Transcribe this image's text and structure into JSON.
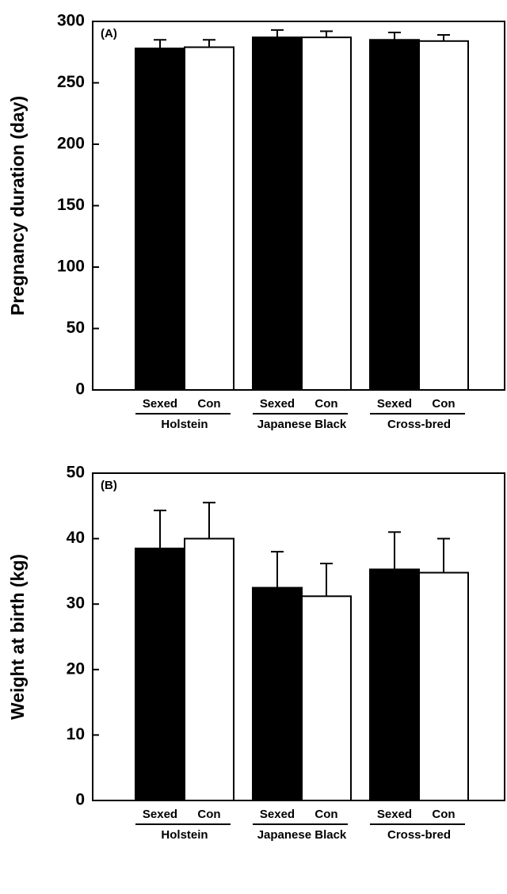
{
  "chart_data": [
    {
      "type": "bar",
      "annotation": "(A)",
      "ylabel": "Pregnancy duration (day)",
      "categories": [
        "Holstein",
        "Japanese Black",
        "Cross-bred"
      ],
      "series": [
        {
          "name": "Sexed",
          "color": "#000000",
          "values": [
            278,
            287,
            285
          ],
          "errors": [
            7,
            6,
            6
          ]
        },
        {
          "name": "Con",
          "color": "#ffffff",
          "values": [
            279,
            287,
            284
          ],
          "errors": [
            6,
            5,
            5
          ]
        }
      ],
      "ylim": [
        0,
        300
      ],
      "yticks": [
        0,
        50,
        100,
        150,
        200,
        250,
        300
      ]
    },
    {
      "type": "bar",
      "annotation": "(B)",
      "ylabel": "Weight at birth (kg)",
      "categories": [
        "Holstein",
        "Japanese Black",
        "Cross-bred"
      ],
      "series": [
        {
          "name": "Sexed",
          "color": "#000000",
          "values": [
            38.5,
            32.5,
            35.3
          ],
          "errors": [
            5.8,
            5.5,
            5.7
          ]
        },
        {
          "name": "Con",
          "color": "#ffffff",
          "values": [
            40,
            31.2,
            34.8
          ],
          "errors": [
            5.5,
            5,
            5.2
          ]
        }
      ],
      "ylim": [
        0,
        50
      ],
      "yticks": [
        0,
        10,
        20,
        30,
        40,
        50
      ]
    }
  ]
}
